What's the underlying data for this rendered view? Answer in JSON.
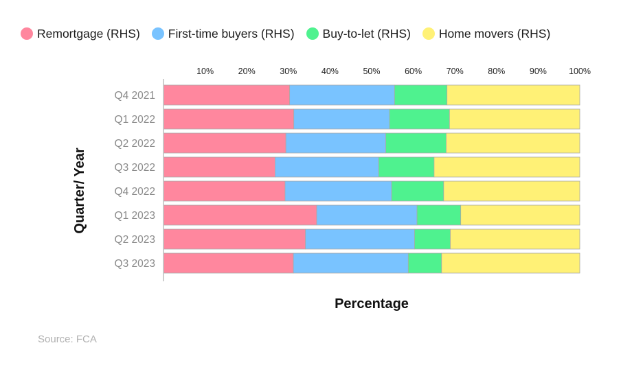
{
  "chart_data": {
    "type": "bar",
    "orientation": "horizontal",
    "stacked": true,
    "title": "",
    "xlabel": "Percentage",
    "ylabel": "Quarter/ Year",
    "xlim": [
      0,
      100
    ],
    "x_ticks": [
      "10%",
      "20%",
      "30%",
      "40%",
      "50%",
      "60%",
      "70%",
      "80%",
      "90%",
      "100%"
    ],
    "x_tick_values": [
      10,
      20,
      30,
      40,
      50,
      60,
      70,
      80,
      90,
      100
    ],
    "x_axis_position": "top",
    "grid": false,
    "legend_position": "top",
    "categories": [
      "Q4 2021",
      "Q1 2022",
      "Q2 2022",
      "Q3 2022",
      "Q4 2022",
      "Q1 2023",
      "Q2 2023",
      "Q3 2023"
    ],
    "series": [
      {
        "name": "Remortgage (RHS)",
        "color": "#ff879e",
        "values": [
          30.3,
          31.3,
          29.4,
          26.8,
          29.2,
          36.8,
          34.1,
          31.2
        ]
      },
      {
        "name": "First-time buyers (RHS)",
        "color": "#79c3ff",
        "values": [
          25.2,
          23.0,
          24.0,
          24.9,
          25.6,
          24.1,
          26.2,
          27.6
        ]
      },
      {
        "name": "Buy-to-let (RHS)",
        "color": "#4ff28f",
        "values": [
          12.6,
          14.4,
          14.5,
          13.3,
          12.5,
          10.5,
          8.6,
          8.0
        ]
      },
      {
        "name": "Home movers (RHS)",
        "color": "#fff176",
        "values": [
          31.9,
          31.3,
          32.1,
          35.0,
          32.7,
          28.6,
          31.1,
          33.2
        ]
      }
    ]
  },
  "source": "Source: FCA"
}
